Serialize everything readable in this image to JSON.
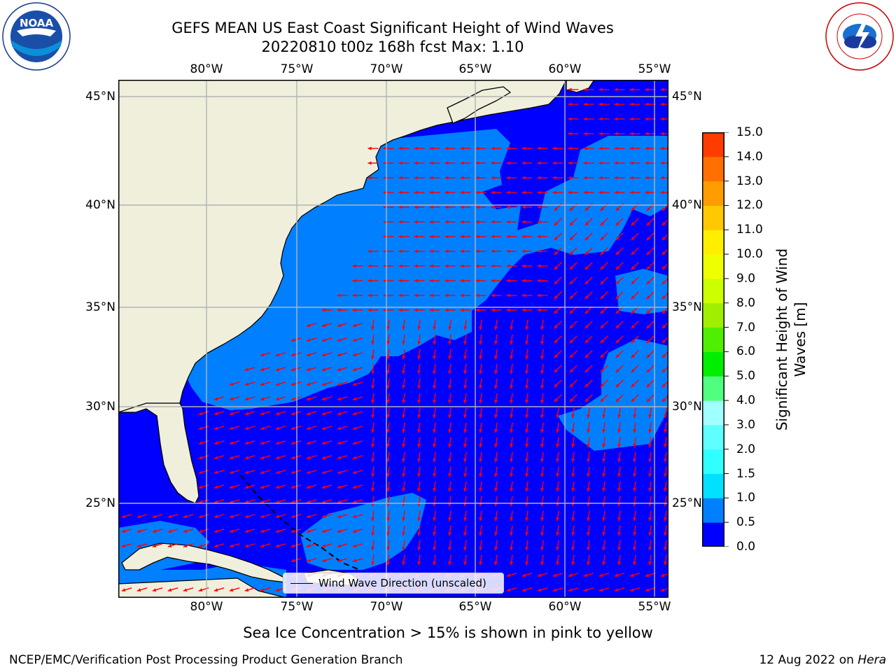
{
  "title": {
    "line1": "GEFS MEAN US East Coast Significant Height of Wind Waves",
    "line2": "20220810 t00z 168h fcst   Max: 1.10"
  },
  "map": {
    "lon_labels": [
      "80°W",
      "75°W",
      "70°W",
      "65°W",
      "60°W",
      "55°W"
    ],
    "lat_labels": [
      "45°N",
      "40°N",
      "35°N",
      "30°N",
      "25°N"
    ],
    "legend_text": "Wind Wave Direction (unscaled)",
    "colors": {
      "land": "#efefdc",
      "deep": "#0000ff",
      "shallow": "#0080ff",
      "arrow": "#ff0000",
      "grid": "#b4b4b4"
    }
  },
  "colorbar": {
    "title": "Significant Height of Wind Waves [m]",
    "ticks": [
      "0.0",
      "0.5",
      "1.0",
      "1.5",
      "2.0",
      "3.0",
      "4.0",
      "5.0",
      "6.0",
      "7.0",
      "8.0",
      "9.0",
      "10.0",
      "11.0",
      "12.0",
      "13.0",
      "14.0",
      "15.0"
    ],
    "colors": [
      "#0000ff",
      "#0080ff",
      "#00e0ff",
      "#30ffff",
      "#60ffff",
      "#a0ffff",
      "#50ff80",
      "#00ee00",
      "#50ee00",
      "#a0ee00",
      "#ccff00",
      "#eeff00",
      "#ffee00",
      "#ffc800",
      "#ff9c00",
      "#ff7000",
      "#ff3c00",
      "#ff0000"
    ]
  },
  "logos": {
    "left": "NOAA",
    "right": "NATIONAL WEATHER SERVICE"
  },
  "footer": {
    "ice_note": "Sea Ice Concentration > 15% is shown in pink to yellow",
    "credit": "NCEP/EMC/Verification Post Processing Product Generation Branch",
    "date": "12 Aug 2022 on ",
    "machine": "Hera"
  }
}
